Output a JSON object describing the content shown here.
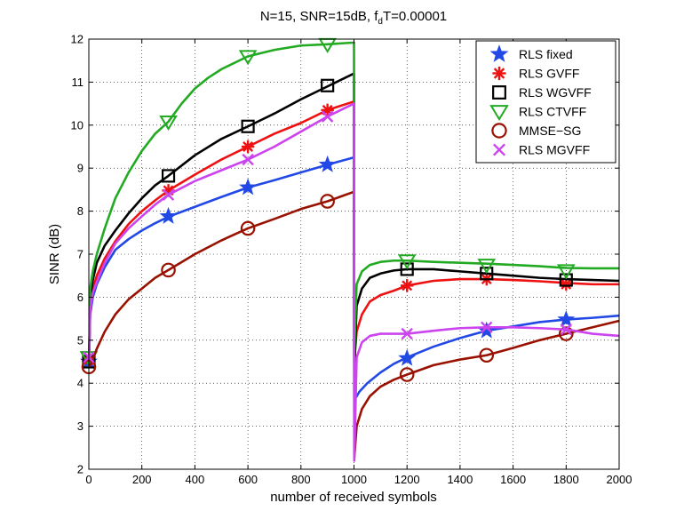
{
  "chart_data": {
    "type": "line",
    "title": "N=15, SNR=15dB, f",
    "title_sub": "d",
    "title_tail": "T=0.00001",
    "xlabel": "number of received symbols",
    "ylabel": "SINR (dB)",
    "xlim": [
      0,
      2000
    ],
    "ylim": [
      2,
      12
    ],
    "xticks": [
      0,
      200,
      400,
      600,
      800,
      1000,
      1200,
      1400,
      1600,
      1800,
      2000
    ],
    "yticks": [
      2,
      3,
      4,
      5,
      6,
      7,
      8,
      9,
      10,
      11,
      12
    ],
    "grid": true,
    "legend_position": "top-right",
    "series": [
      {
        "name": "RLS fixed",
        "color": "#2249e6",
        "marker": "star",
        "points": [
          [
            1,
            4.5
          ],
          [
            5,
            5.6
          ],
          [
            15,
            6.0
          ],
          [
            30,
            6.3
          ],
          [
            60,
            6.7
          ],
          [
            100,
            7.1
          ],
          [
            150,
            7.35
          ],
          [
            200,
            7.55
          ],
          [
            250,
            7.72
          ],
          [
            300,
            7.87
          ],
          [
            400,
            8.1
          ],
          [
            500,
            8.33
          ],
          [
            600,
            8.55
          ],
          [
            700,
            8.72
          ],
          [
            800,
            8.9
          ],
          [
            900,
            9.08
          ],
          [
            1000,
            9.25
          ],
          [
            1001,
            3.6
          ],
          [
            1020,
            3.8
          ],
          [
            1050,
            4.0
          ],
          [
            1100,
            4.25
          ],
          [
            1150,
            4.45
          ],
          [
            1200,
            4.6
          ],
          [
            1300,
            4.85
          ],
          [
            1400,
            5.05
          ],
          [
            1500,
            5.22
          ],
          [
            1600,
            5.32
          ],
          [
            1700,
            5.42
          ],
          [
            1800,
            5.48
          ],
          [
            1900,
            5.52
          ],
          [
            2000,
            5.57
          ]
        ],
        "markers": [
          [
            0,
            4.5
          ],
          [
            300,
            7.88
          ],
          [
            600,
            8.55
          ],
          [
            900,
            9.08
          ],
          [
            1200,
            4.58
          ],
          [
            1500,
            5.22
          ],
          [
            1800,
            5.48
          ]
        ]
      },
      {
        "name": "RLS GVFF",
        "color": "#ee1111",
        "marker": "asterisk",
        "points": [
          [
            1,
            4.5
          ],
          [
            5,
            5.8
          ],
          [
            15,
            6.2
          ],
          [
            30,
            6.5
          ],
          [
            60,
            6.9
          ],
          [
            100,
            7.3
          ],
          [
            150,
            7.7
          ],
          [
            200,
            8.0
          ],
          [
            250,
            8.25
          ],
          [
            300,
            8.48
          ],
          [
            400,
            8.85
          ],
          [
            500,
            9.2
          ],
          [
            600,
            9.5
          ],
          [
            700,
            9.8
          ],
          [
            800,
            10.05
          ],
          [
            900,
            10.35
          ],
          [
            1000,
            10.55
          ],
          [
            1001,
            4.5
          ],
          [
            1010,
            5.2
          ],
          [
            1030,
            5.6
          ],
          [
            1060,
            5.9
          ],
          [
            1100,
            6.05
          ],
          [
            1150,
            6.15
          ],
          [
            1200,
            6.27
          ],
          [
            1300,
            6.38
          ],
          [
            1400,
            6.42
          ],
          [
            1500,
            6.42
          ],
          [
            1600,
            6.4
          ],
          [
            1700,
            6.37
          ],
          [
            1800,
            6.33
          ],
          [
            1900,
            6.3
          ],
          [
            2000,
            6.3
          ]
        ],
        "markers": [
          [
            0,
            4.55
          ],
          [
            300,
            8.48
          ],
          [
            600,
            9.5
          ],
          [
            900,
            10.35
          ],
          [
            1200,
            6.27
          ],
          [
            1500,
            6.42
          ],
          [
            1800,
            6.3
          ]
        ]
      },
      {
        "name": "RLS WGVFF",
        "color": "#000000",
        "marker": "square",
        "points": [
          [
            1,
            4.5
          ],
          [
            5,
            6.0
          ],
          [
            15,
            6.4
          ],
          [
            30,
            6.8
          ],
          [
            60,
            7.2
          ],
          [
            100,
            7.55
          ],
          [
            150,
            7.95
          ],
          [
            200,
            8.3
          ],
          [
            250,
            8.6
          ],
          [
            300,
            8.82
          ],
          [
            400,
            9.3
          ],
          [
            500,
            9.68
          ],
          [
            600,
            9.97
          ],
          [
            700,
            10.27
          ],
          [
            800,
            10.6
          ],
          [
            900,
            10.9
          ],
          [
            1000,
            11.2
          ],
          [
            1001,
            4.3
          ],
          [
            1010,
            5.8
          ],
          [
            1030,
            6.2
          ],
          [
            1060,
            6.45
          ],
          [
            1100,
            6.55
          ],
          [
            1150,
            6.62
          ],
          [
            1200,
            6.65
          ],
          [
            1300,
            6.65
          ],
          [
            1400,
            6.6
          ],
          [
            1500,
            6.55
          ],
          [
            1600,
            6.5
          ],
          [
            1700,
            6.45
          ],
          [
            1800,
            6.42
          ],
          [
            1900,
            6.4
          ],
          [
            2000,
            6.38
          ]
        ],
        "markers": [
          [
            0,
            4.5
          ],
          [
            300,
            8.82
          ],
          [
            600,
            9.97
          ],
          [
            900,
            10.92
          ],
          [
            1200,
            6.65
          ],
          [
            1500,
            6.55
          ],
          [
            1800,
            6.4
          ]
        ]
      },
      {
        "name": "RLS CTVFF",
        "color": "#22aa22",
        "marker": "triangle-down",
        "points": [
          [
            1,
            4.5
          ],
          [
            5,
            6.2
          ],
          [
            15,
            6.6
          ],
          [
            30,
            7.0
          ],
          [
            60,
            7.6
          ],
          [
            100,
            8.3
          ],
          [
            150,
            8.9
          ],
          [
            200,
            9.4
          ],
          [
            250,
            9.8
          ],
          [
            300,
            10.08
          ],
          [
            350,
            10.5
          ],
          [
            400,
            10.85
          ],
          [
            450,
            11.1
          ],
          [
            500,
            11.3
          ],
          [
            600,
            11.6
          ],
          [
            700,
            11.75
          ],
          [
            800,
            11.85
          ],
          [
            900,
            11.88
          ],
          [
            1000,
            11.92
          ],
          [
            1001,
            4.7
          ],
          [
            1010,
            6.3
          ],
          [
            1030,
            6.6
          ],
          [
            1060,
            6.75
          ],
          [
            1100,
            6.82
          ],
          [
            1150,
            6.85
          ],
          [
            1200,
            6.85
          ],
          [
            1300,
            6.82
          ],
          [
            1400,
            6.8
          ],
          [
            1500,
            6.78
          ],
          [
            1600,
            6.75
          ],
          [
            1700,
            6.72
          ],
          [
            1800,
            6.68
          ],
          [
            1900,
            6.67
          ],
          [
            2000,
            6.67
          ]
        ],
        "markers": [
          [
            0,
            4.6
          ],
          [
            300,
            10.08
          ],
          [
            600,
            11.6
          ],
          [
            900,
            11.88
          ],
          [
            1200,
            6.85
          ],
          [
            1500,
            6.75
          ],
          [
            1800,
            6.62
          ]
        ]
      },
      {
        "name": "MMSE−SG",
        "color": "#991100",
        "marker": "circle",
        "points": [
          [
            1,
            4.38
          ],
          [
            15,
            4.55
          ],
          [
            30,
            4.8
          ],
          [
            60,
            5.2
          ],
          [
            100,
            5.6
          ],
          [
            150,
            5.95
          ],
          [
            200,
            6.2
          ],
          [
            250,
            6.45
          ],
          [
            300,
            6.63
          ],
          [
            400,
            7.0
          ],
          [
            500,
            7.32
          ],
          [
            600,
            7.6
          ],
          [
            700,
            7.82
          ],
          [
            800,
            8.05
          ],
          [
            900,
            8.23
          ],
          [
            1000,
            8.45
          ],
          [
            1001,
            2.25
          ],
          [
            1010,
            3.0
          ],
          [
            1030,
            3.4
          ],
          [
            1060,
            3.7
          ],
          [
            1100,
            3.92
          ],
          [
            1150,
            4.08
          ],
          [
            1200,
            4.2
          ],
          [
            1300,
            4.42
          ],
          [
            1400,
            4.55
          ],
          [
            1500,
            4.65
          ],
          [
            1600,
            4.82
          ],
          [
            1700,
            5.0
          ],
          [
            1800,
            5.15
          ],
          [
            1900,
            5.3
          ],
          [
            2000,
            5.45
          ]
        ],
        "markers": [
          [
            0,
            4.38
          ],
          [
            300,
            6.63
          ],
          [
            600,
            7.6
          ],
          [
            900,
            8.23
          ],
          [
            1200,
            4.2
          ],
          [
            1500,
            4.65
          ],
          [
            1800,
            5.15
          ]
        ]
      },
      {
        "name": "RLS MGVFF",
        "color": "#cc44ee",
        "marker": "x",
        "points": [
          [
            1,
            4.55
          ],
          [
            5,
            5.7
          ],
          [
            15,
            6.1
          ],
          [
            30,
            6.35
          ],
          [
            60,
            6.8
          ],
          [
            100,
            7.25
          ],
          [
            150,
            7.6
          ],
          [
            200,
            7.88
          ],
          [
            250,
            8.15
          ],
          [
            300,
            8.38
          ],
          [
            400,
            8.7
          ],
          [
            500,
            8.95
          ],
          [
            600,
            9.2
          ],
          [
            700,
            9.5
          ],
          [
            800,
            9.85
          ],
          [
            900,
            10.2
          ],
          [
            1000,
            10.5
          ],
          [
            1001,
            2.2
          ],
          [
            1010,
            4.6
          ],
          [
            1030,
            4.95
          ],
          [
            1060,
            5.1
          ],
          [
            1100,
            5.15
          ],
          [
            1200,
            5.15
          ],
          [
            1300,
            5.22
          ],
          [
            1400,
            5.28
          ],
          [
            1500,
            5.3
          ],
          [
            1600,
            5.3
          ],
          [
            1700,
            5.28
          ],
          [
            1800,
            5.25
          ],
          [
            1900,
            5.15
          ],
          [
            2000,
            5.1
          ]
        ],
        "markers": [
          [
            0,
            4.6
          ],
          [
            300,
            8.38
          ],
          [
            600,
            9.2
          ],
          [
            900,
            10.2
          ],
          [
            1200,
            5.15
          ],
          [
            1500,
            5.3
          ],
          [
            1800,
            5.25
          ]
        ]
      }
    ]
  }
}
